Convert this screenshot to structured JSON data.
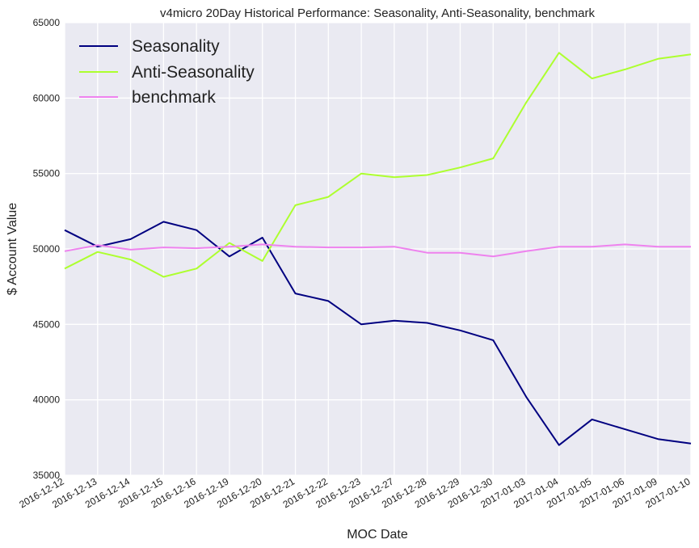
{
  "chart_data": {
    "type": "line",
    "title": "v4micro 20Day Historical Performance: Seasonality, Anti-Seasonality, benchmark",
    "xlabel": "MOC Date",
    "ylabel": "$ Account Value",
    "ylim": [
      35000,
      65000
    ],
    "yticks": [
      "35000",
      "40000",
      "45000",
      "50000",
      "55000",
      "60000",
      "65000"
    ],
    "grid": true,
    "legend_position": "top-left",
    "x": [
      "2016-12-12",
      "2016-12-13",
      "2016-12-14",
      "2016-12-15",
      "2016-12-16",
      "2016-12-19",
      "2016-12-20",
      "2016-12-21",
      "2016-12-22",
      "2016-12-23",
      "2016-12-27",
      "2016-12-28",
      "2016-12-29",
      "2016-12-30",
      "2017-01-03",
      "2017-01-04",
      "2017-01-05",
      "2017-01-06",
      "2017-01-09",
      "2017-01-10"
    ],
    "series": [
      {
        "name": "Seasonality",
        "color": "#000080",
        "values": [
          51250,
          50150,
          50650,
          51800,
          51250,
          49500,
          50750,
          47050,
          46550,
          45000,
          45250,
          45100,
          44600,
          43950,
          40200,
          37000,
          38700,
          38050,
          37400,
          37100
        ]
      },
      {
        "name": "Anti-Seasonality",
        "color": "#adff2f",
        "values": [
          48700,
          49800,
          49300,
          48150,
          48700,
          50400,
          49200,
          52900,
          53450,
          55000,
          54750,
          54900,
          55400,
          56000,
          59700,
          63000,
          61300,
          61900,
          62600,
          62900
        ]
      },
      {
        "name": "benchmark",
        "color": "#ee82ee",
        "values": [
          49850,
          50250,
          49950,
          50100,
          50050,
          50150,
          50300,
          50150,
          50100,
          50100,
          50150,
          49750,
          49750,
          49500,
          49850,
          50150,
          50150,
          50300,
          50150,
          50150
        ]
      }
    ]
  }
}
